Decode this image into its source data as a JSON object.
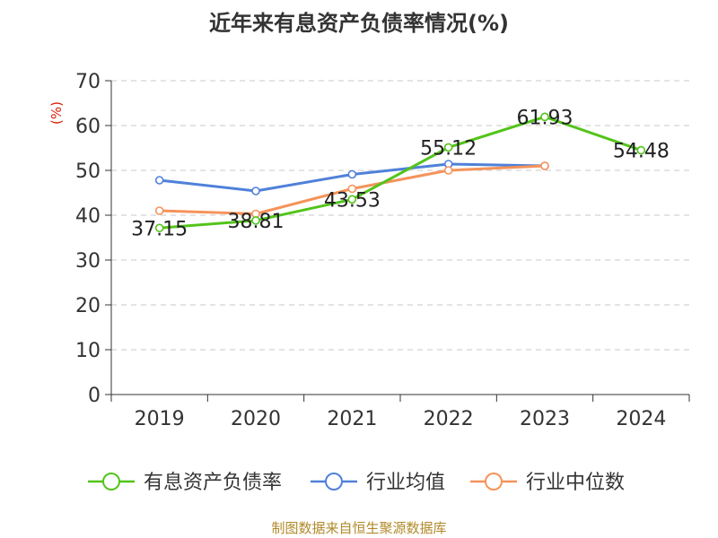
{
  "chart_data": {
    "type": "line",
    "title": "近年来有息资产负债率情况(%)",
    "ylabel": "(%)",
    "xlabel": "",
    "categories": [
      "2019",
      "2020",
      "2021",
      "2022",
      "2023",
      "2024"
    ],
    "ylim": [
      0,
      70
    ],
    "yticks": [
      0,
      10,
      20,
      30,
      40,
      50,
      60,
      70
    ],
    "grid": true,
    "legend_position": "bottom",
    "series": [
      {
        "name": "有息资产负债率",
        "color": "#52c41a",
        "values": [
          37.15,
          38.81,
          43.53,
          55.12,
          61.93,
          54.48
        ],
        "labels": [
          "37.15",
          "38.81",
          "43.53",
          "55.12",
          "61.93",
          "54.48"
        ]
      },
      {
        "name": "行业均值",
        "color": "#4f81d9",
        "values": [
          47.8,
          45.4,
          49.1,
          51.4,
          51.0,
          null
        ]
      },
      {
        "name": "行业中位数",
        "color": "#f5935a",
        "values": [
          41.0,
          40.3,
          45.9,
          50.0,
          51.0,
          null
        ]
      }
    ]
  },
  "source": "制图数据来自恒生聚源数据库"
}
